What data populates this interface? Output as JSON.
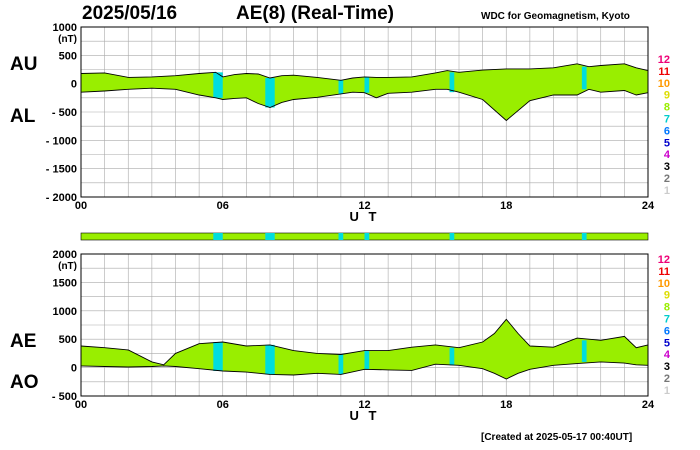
{
  "header": {
    "date": "2025/05/16",
    "title": "AE(8)  (Real-Time)",
    "organization": "WDC for Geomagnetism, Kyoto"
  },
  "footer": {
    "created": "[Created at 2025-05-17 00:40UT]"
  },
  "colors": {
    "band": "#99ee00",
    "gap": "#00dddd",
    "grid": "#aaaaaa"
  },
  "station_legend": [
    {
      "label": "12",
      "color": "#ee0077"
    },
    {
      "label": "11",
      "color": "#ee0000"
    },
    {
      "label": "10",
      "color": "#ff9900"
    },
    {
      "label": "9",
      "color": "#dddd00"
    },
    {
      "label": "8",
      "color": "#99ee00"
    },
    {
      "label": "7",
      "color": "#00cccc"
    },
    {
      "label": "6",
      "color": "#0077ff"
    },
    {
      "label": "5",
      "color": "#0000cc"
    },
    {
      "label": "4",
      "color": "#cc00cc"
    },
    {
      "label": "3",
      "color": "#000000"
    },
    {
      "label": "2",
      "color": "#777777"
    },
    {
      "label": "1",
      "color": "#cccccc"
    }
  ],
  "chart_data": [
    {
      "type": "area",
      "upper_label": "AU",
      "lower_label": "AL",
      "unit": "(nT)",
      "xlabel": "U T",
      "xlim": [
        0,
        24
      ],
      "ylim": [
        -2000,
        1000
      ],
      "xticks": [
        "00",
        "06",
        "12",
        "18",
        "24"
      ],
      "yticks": [
        "1000",
        "500",
        "0",
        "- 500",
        "- 1000",
        "- 1500",
        "- 2000"
      ],
      "grid": true,
      "legend": "right",
      "series": [
        {
          "name": "AU",
          "x": [
            0,
            1,
            2,
            3,
            4,
            5,
            5.7,
            6,
            6.5,
            7,
            7.5,
            8,
            8.5,
            9,
            10,
            11,
            11.5,
            12,
            12.5,
            13,
            14,
            15,
            15.5,
            16,
            17,
            18,
            19,
            20,
            21,
            21.5,
            22,
            23,
            23.5,
            24
          ],
          "values": [
            180,
            190,
            110,
            120,
            140,
            180,
            200,
            120,
            160,
            180,
            170,
            100,
            140,
            150,
            110,
            60,
            100,
            120,
            110,
            110,
            120,
            190,
            230,
            200,
            240,
            260,
            260,
            280,
            350,
            300,
            320,
            350,
            280,
            230
          ]
        },
        {
          "name": "AL",
          "x": [
            0,
            1,
            2,
            3,
            4,
            5,
            5.7,
            6,
            6.5,
            7,
            7.5,
            8,
            8.5,
            9,
            10,
            11,
            11.5,
            12,
            12.5,
            13,
            14,
            15,
            15.5,
            16,
            17,
            18,
            19,
            20,
            21,
            21.5,
            22,
            23,
            23.5,
            24
          ],
          "values": [
            -150,
            -130,
            -100,
            -80,
            -100,
            -200,
            -250,
            -280,
            -260,
            -250,
            -350,
            -420,
            -330,
            -280,
            -240,
            -180,
            -150,
            -160,
            -250,
            -170,
            -150,
            -100,
            -100,
            -150,
            -280,
            -650,
            -300,
            -200,
            -200,
            -100,
            -150,
            -120,
            -200,
            -160
          ]
        }
      ],
      "gaps": [
        [
          5.6,
          6.0
        ],
        [
          7.8,
          8.2
        ],
        [
          10.9,
          11.1
        ],
        [
          12.0,
          12.2
        ],
        [
          15.6,
          15.8
        ],
        [
          21.2,
          21.4
        ]
      ]
    },
    {
      "type": "area",
      "upper_label": "AE",
      "lower_label": "AO",
      "unit": "(nT)",
      "xlabel": "U T",
      "xlim": [
        0,
        24
      ],
      "ylim": [
        -500,
        2000
      ],
      "xticks": [
        "00",
        "06",
        "12",
        "18",
        "24"
      ],
      "yticks": [
        "2000",
        "1500",
        "1000",
        "500",
        "0",
        "- 500"
      ],
      "grid": true,
      "legend": "right",
      "series": [
        {
          "name": "AE",
          "x": [
            0,
            1,
            2,
            3,
            3.5,
            4,
            5,
            6,
            7,
            8,
            9,
            10,
            11,
            12,
            13,
            14,
            15,
            16,
            17,
            17.5,
            18,
            18.5,
            19,
            20,
            21,
            22,
            23,
            23.5,
            24
          ],
          "values": [
            380,
            350,
            310,
            100,
            50,
            250,
            420,
            450,
            380,
            400,
            300,
            250,
            230,
            300,
            300,
            360,
            400,
            350,
            450,
            600,
            850,
            600,
            380,
            360,
            520,
            480,
            550,
            350,
            400
          ]
        },
        {
          "name": "AO",
          "x": [
            0,
            1,
            2,
            3,
            3.5,
            4,
            5,
            6,
            7,
            8,
            9,
            10,
            11,
            12,
            13,
            14,
            15,
            16,
            17,
            17.5,
            18,
            18.5,
            19,
            20,
            21,
            22,
            23,
            23.5,
            24
          ],
          "values": [
            30,
            20,
            10,
            20,
            30,
            20,
            -20,
            -60,
            -80,
            -120,
            -130,
            -100,
            -120,
            -30,
            -40,
            -50,
            60,
            40,
            -20,
            -100,
            -200,
            -100,
            -30,
            40,
            70,
            100,
            80,
            50,
            40
          ]
        }
      ],
      "gaps": [
        [
          5.6,
          6.0
        ],
        [
          7.8,
          8.2
        ],
        [
          10.9,
          11.1
        ],
        [
          12.0,
          12.2
        ],
        [
          15.6,
          15.8
        ],
        [
          21.2,
          21.4
        ]
      ]
    }
  ],
  "availability_bar": {
    "xlim": [
      0,
      24
    ],
    "gaps": [
      [
        5.6,
        6.0
      ],
      [
        7.8,
        8.2
      ],
      [
        10.9,
        11.1
      ],
      [
        12.0,
        12.2
      ],
      [
        15.6,
        15.8
      ],
      [
        21.2,
        21.4
      ]
    ]
  }
}
